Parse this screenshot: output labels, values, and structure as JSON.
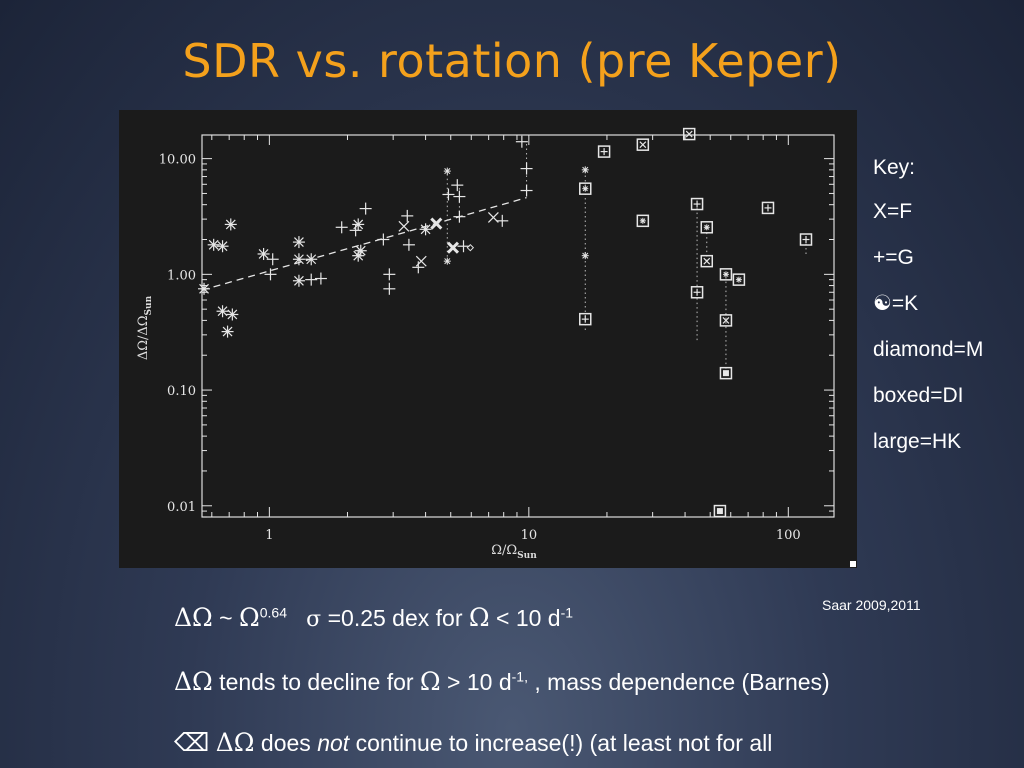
{
  "slide": {
    "title": "SDR vs. rotation (pre Keper)"
  },
  "key": {
    "title": "Key:",
    "items": [
      "X=F",
      "+=G",
      "☯=K",
      "diamond=M",
      "boxed=DI",
      "large=HK"
    ]
  },
  "citation": "Saar 2009,2011",
  "bullets": {
    "b1": {
      "delta_omega": "ΔΩ",
      "tilde": " ~ ",
      "omega": "Ω",
      "exponent": "0.64",
      "sigma": "σ",
      "text": " =0.25 dex for ",
      "omega2": "Ω",
      "text2": " < 10 d",
      "exp2": "-1"
    },
    "b2": {
      "delta_omega": "ΔΩ",
      "text": " tends to decline for ",
      "omega": "Ω",
      "text2": " > 10 d",
      "exp": "-1,",
      "text3": " , mass dependence (Barnes)"
    },
    "b3": {
      "icon": "⌫",
      "delta_omega": "ΔΩ",
      "text": " does ",
      "emph": "not",
      "text2": " continue to increase(!) (at least not for all"
    }
  },
  "chart_data": {
    "type": "scatter",
    "x_scale": "log",
    "y_scale": "log",
    "xlim": [
      0.55,
      150
    ],
    "ylim": [
      0.008,
      16
    ],
    "x_ticks": [
      {
        "value": 1,
        "label": "1"
      },
      {
        "value": 10,
        "label": "10"
      },
      {
        "value": 100,
        "label": "100"
      }
    ],
    "y_ticks": [
      {
        "value": 10,
        "label": "10.00"
      },
      {
        "value": 1,
        "label": "1.00"
      },
      {
        "value": 0.1,
        "label": "0.10"
      },
      {
        "value": 0.01,
        "label": "0.01"
      }
    ],
    "xlabel": "Ω/Ω",
    "xlabel_sub": "Sun",
    "ylabel": "ΔΩ/ΔΩ",
    "ylabel_sub": "Sun",
    "fit_line": {
      "x": [
        0.55,
        9.8
      ],
      "y": [
        0.73,
        4.6
      ]
    },
    "points": [
      {
        "x": 0.56,
        "y": 0.75,
        "m": "star"
      },
      {
        "x": 0.61,
        "y": 1.8,
        "m": "star"
      },
      {
        "x": 0.66,
        "y": 1.75,
        "m": "star"
      },
      {
        "x": 0.71,
        "y": 2.7,
        "m": "star"
      },
      {
        "x": 0.66,
        "y": 0.48,
        "m": "star"
      },
      {
        "x": 0.72,
        "y": 0.45,
        "m": "star"
      },
      {
        "x": 0.69,
        "y": 0.32,
        "m": "star"
      },
      {
        "x": 0.95,
        "y": 1.5,
        "m": "star"
      },
      {
        "x": 1.03,
        "y": 1.35,
        "m": "plus"
      },
      {
        "x": 1.01,
        "y": 1.0,
        "m": "plus"
      },
      {
        "x": 1.3,
        "y": 1.9,
        "m": "star"
      },
      {
        "x": 1.3,
        "y": 1.35,
        "m": "star"
      },
      {
        "x": 1.45,
        "y": 1.35,
        "m": "star"
      },
      {
        "x": 1.3,
        "y": 0.88,
        "m": "star"
      },
      {
        "x": 1.45,
        "y": 0.9,
        "m": "plus"
      },
      {
        "x": 1.58,
        "y": 0.92,
        "m": "plus"
      },
      {
        "x": 1.9,
        "y": 2.55,
        "m": "plus"
      },
      {
        "x": 2.15,
        "y": 2.4,
        "m": "plus"
      },
      {
        "x": 2.2,
        "y": 2.7,
        "m": "star"
      },
      {
        "x": 2.35,
        "y": 3.7,
        "m": "plus"
      },
      {
        "x": 2.25,
        "y": 1.6,
        "m": "star"
      },
      {
        "x": 2.2,
        "y": 1.45,
        "m": "star"
      },
      {
        "x": 2.75,
        "y": 2.0,
        "m": "plus"
      },
      {
        "x": 2.9,
        "y": 1.0,
        "m": "plus"
      },
      {
        "x": 2.9,
        "y": 0.75,
        "m": "plus"
      },
      {
        "x": 3.3,
        "y": 2.6,
        "m": "x"
      },
      {
        "x": 3.4,
        "y": 3.2,
        "m": "plus"
      },
      {
        "x": 3.45,
        "y": 1.8,
        "m": "plus"
      },
      {
        "x": 3.85,
        "y": 1.3,
        "m": "x"
      },
      {
        "x": 3.75,
        "y": 1.15,
        "m": "plus"
      },
      {
        "x": 4.0,
        "y": 2.45,
        "m": "star"
      },
      {
        "x": 4.4,
        "y": 2.75,
        "m": "bigx"
      },
      {
        "x": 4.85,
        "y": 7.8,
        "m": "smallstar"
      },
      {
        "x": 4.9,
        "y": 4.9,
        "m": "plus"
      },
      {
        "x": 5.3,
        "y": 5.9,
        "m": "plus"
      },
      {
        "x": 5.4,
        "y": 4.7,
        "m": "plus"
      },
      {
        "x": 5.4,
        "y": 3.15,
        "m": "plus"
      },
      {
        "x": 4.85,
        "y": 1.3,
        "m": "smallstar"
      },
      {
        "x": 5.1,
        "y": 1.7,
        "m": "bigx"
      },
      {
        "x": 5.6,
        "y": 1.75,
        "m": "plus"
      },
      {
        "x": 5.95,
        "y": 1.7,
        "m": "diamond"
      },
      {
        "x": 7.3,
        "y": 3.1,
        "m": "x"
      },
      {
        "x": 7.9,
        "y": 2.9,
        "m": "plus"
      },
      {
        "x": 9.4,
        "y": 14.0,
        "m": "plus"
      },
      {
        "x": 9.8,
        "y": 8.2,
        "m": "plus"
      },
      {
        "x": 9.8,
        "y": 5.3,
        "m": "plus"
      },
      {
        "x": 16.5,
        "y": 8.0,
        "m": "smallstar"
      },
      {
        "x": 16.5,
        "y": 5.5,
        "m": "boxedK"
      },
      {
        "x": 16.5,
        "y": 1.45,
        "m": "smallstar"
      },
      {
        "x": 16.5,
        "y": 0.41,
        "m": "boxedG"
      },
      {
        "x": 19.5,
        "y": 11.5,
        "m": "boxedG"
      },
      {
        "x": 27.5,
        "y": 13.2,
        "m": "boxedX"
      },
      {
        "x": 27.5,
        "y": 2.9,
        "m": "boxedK"
      },
      {
        "x": 41.5,
        "y": 16.3,
        "m": "boxedX"
      },
      {
        "x": 44.5,
        "y": 4.05,
        "m": "boxedG"
      },
      {
        "x": 44.5,
        "y": 0.7,
        "m": "boxedG"
      },
      {
        "x": 48.5,
        "y": 2.55,
        "m": "boxedK"
      },
      {
        "x": 48.5,
        "y": 1.3,
        "m": "boxedX"
      },
      {
        "x": 57.5,
        "y": 1.0,
        "m": "boxedK"
      },
      {
        "x": 57.5,
        "y": 0.4,
        "m": "boxedX"
      },
      {
        "x": 57.5,
        "y": 0.14,
        "m": "boxedSolid"
      },
      {
        "x": 64.5,
        "y": 0.9,
        "m": "boxedK"
      },
      {
        "x": 83.5,
        "y": 3.75,
        "m": "boxedG"
      },
      {
        "x": 117,
        "y": 2.0,
        "m": "boxedG"
      },
      {
        "x": 54.5,
        "y": 0.009,
        "m": "boxedSolid"
      }
    ],
    "connectors": [
      {
        "x": 4.85,
        "y1": 1.3,
        "y2": 7.8
      },
      {
        "x": 5.4,
        "y1": 3.15,
        "y2": 5.9
      },
      {
        "x": 9.8,
        "y1": 5.3,
        "y2": 14.0
      },
      {
        "x": 16.5,
        "y1": 0.33,
        "y2": 8.0
      },
      {
        "x": 44.5,
        "y1": 0.27,
        "y2": 4.05
      },
      {
        "x": 48.5,
        "y1": 1.3,
        "y2": 2.55
      },
      {
        "x": 57.5,
        "y1": 0.14,
        "y2": 1.0
      },
      {
        "x": 117,
        "y1": 1.5,
        "y2": 2.0
      }
    ]
  }
}
